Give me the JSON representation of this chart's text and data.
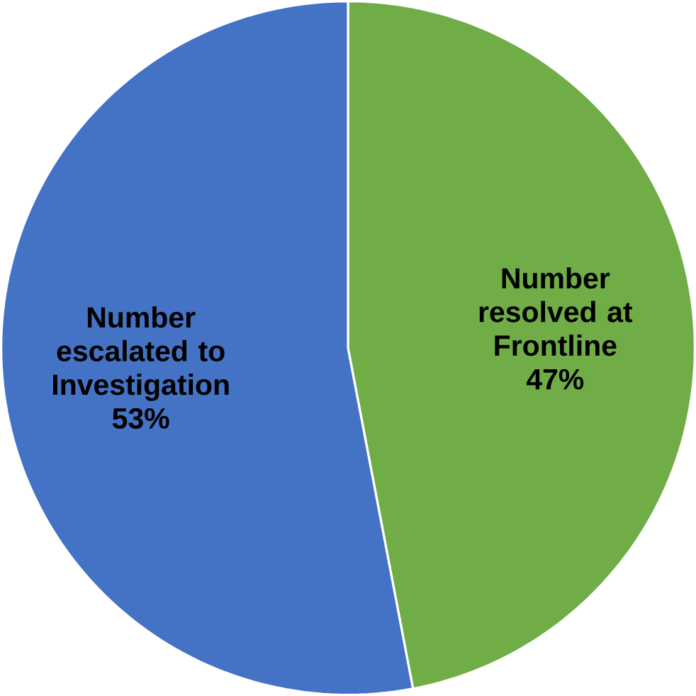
{
  "chart_data": {
    "type": "pie",
    "categories": [
      "Number resolved at Frontline",
      "Number escalated to Investigation"
    ],
    "values": [
      47,
      53
    ],
    "colors": [
      "#70ad47",
      "#4472c4"
    ],
    "value_labels": [
      "47%",
      "53%"
    ]
  }
}
